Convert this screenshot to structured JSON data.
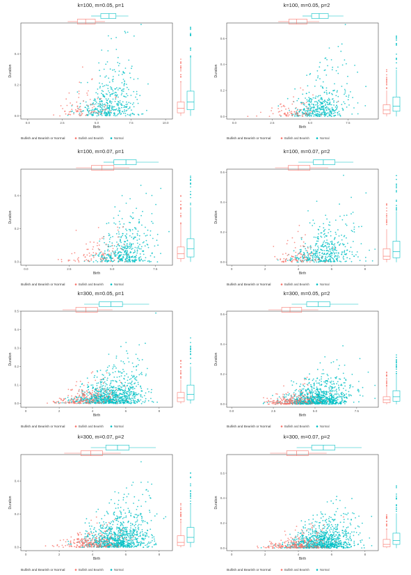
{
  "colors": {
    "bullish": "#F8766D",
    "normal": "#00BFC4",
    "frame": "#444444"
  },
  "legend": {
    "title": "Bullish and Bearish or Normal",
    "entries": [
      "Bullish and Bearish",
      "Normal"
    ],
    "placement": "bottom"
  },
  "chart_data": [
    {
      "type": "scatter",
      "title": "k=100, m=0.05, p=1",
      "xlabel": "Birth",
      "ylabel": "Duration",
      "xlim": [
        -0.5,
        10.5
      ],
      "ylim": [
        -0.02,
        0.6
      ],
      "xticks": [
        "0.0",
        "2.5",
        "5.0",
        "7.5",
        "10.0"
      ],
      "yticks": [
        "0.0",
        "0.2",
        "0.4"
      ],
      "ytick_values": [
        0,
        0.2,
        0.4
      ],
      "xtick_values": [
        0,
        2.5,
        5,
        7.5,
        10
      ],
      "series": [
        {
          "name": "Bullish and Bearish",
          "n": 80,
          "x_mean": 3.9,
          "x_sd": 0.9,
          "y_scale": 0.07
        },
        {
          "name": "Normal",
          "n": 420,
          "x_mean": 5.9,
          "x_sd": 1.0,
          "y_scale": 0.11
        }
      ],
      "marginal_x": {
        "bullish": [
          2.9,
          3.6,
          4.2,
          4.9,
          5.6
        ],
        "normal": [
          4.6,
          5.3,
          5.9,
          6.4,
          7.3
        ]
      },
      "marginal_y": {
        "bullish": [
          0.0,
          0.02,
          0.05,
          0.09,
          0.22
        ],
        "normal": [
          0.0,
          0.04,
          0.09,
          0.16,
          0.38
        ]
      }
    },
    {
      "type": "scatter",
      "title": "k=100, m=0.05, p=2",
      "xlabel": "Birth",
      "ylabel": "Duration",
      "xlim": [
        -0.5,
        9.5
      ],
      "ylim": [
        -0.02,
        0.72
      ],
      "xticks": [
        "0.0",
        "2.5",
        "5.0",
        "7.5"
      ],
      "yticks": [
        "0.0",
        "0.2",
        "0.4",
        "0.6"
      ],
      "ytick_values": [
        0,
        0.2,
        0.4,
        0.6
      ],
      "xtick_values": [
        0,
        2.5,
        5,
        7.5
      ],
      "series": [
        {
          "name": "Bullish and Bearish",
          "n": 80,
          "x_mean": 3.9,
          "x_sd": 0.9,
          "y_scale": 0.06
        },
        {
          "name": "Normal",
          "n": 420,
          "x_mean": 5.7,
          "x_sd": 0.9,
          "y_scale": 0.11
        }
      ],
      "marginal_x": {
        "bullish": [
          2.9,
          3.6,
          4.1,
          4.8,
          5.6
        ],
        "normal": [
          4.5,
          5.1,
          5.6,
          6.2,
          7.2
        ]
      },
      "marginal_y": {
        "bullish": [
          0.0,
          0.02,
          0.05,
          0.09,
          0.2
        ],
        "normal": [
          0.0,
          0.04,
          0.08,
          0.15,
          0.36
        ]
      }
    },
    {
      "type": "scatter",
      "title": "k=100, m=0.07, p=1",
      "xlabel": "Birth",
      "ylabel": "Duration",
      "xlim": [
        -0.3,
        8.5
      ],
      "ylim": [
        -0.02,
        0.56
      ],
      "xticks": [
        "0.0",
        "2.5",
        "5.0",
        "7.5"
      ],
      "yticks": [
        "0.0",
        "0.2",
        "0.4"
      ],
      "ytick_values": [
        0,
        0.2,
        0.4
      ],
      "xtick_values": [
        0,
        2.5,
        5,
        7.5
      ],
      "series": [
        {
          "name": "Bullish and Bearish",
          "n": 90,
          "x_mean": 4.2,
          "x_sd": 0.9,
          "y_scale": 0.07
        },
        {
          "name": "Normal",
          "n": 420,
          "x_mean": 5.8,
          "x_sd": 0.9,
          "y_scale": 0.1
        }
      ],
      "marginal_x": {
        "bullish": [
          2.9,
          3.8,
          4.4,
          5.1,
          6.0
        ],
        "normal": [
          4.5,
          5.1,
          5.8,
          6.4,
          7.7
        ]
      },
      "marginal_y": {
        "bullish": [
          0.0,
          0.02,
          0.05,
          0.09,
          0.23
        ],
        "normal": [
          0.0,
          0.03,
          0.08,
          0.14,
          0.33
        ]
      }
    },
    {
      "type": "scatter",
      "title": "k=100, m=0.07, p=2",
      "xlabel": "Birth",
      "ylabel": "Duration",
      "xlim": [
        -0.3,
        8.8
      ],
      "ylim": [
        -0.02,
        0.62
      ],
      "xticks": [
        "0",
        "2",
        "4",
        "6",
        "8"
      ],
      "yticks": [
        "0.0",
        "0.2",
        "0.4",
        "0.6"
      ],
      "ytick_values": [
        0,
        0.2,
        0.4,
        0.6
      ],
      "xtick_values": [
        0,
        2,
        4,
        6,
        8
      ],
      "series": [
        {
          "name": "Bullish and Bearish",
          "n": 90,
          "x_mean": 4.0,
          "x_sd": 0.9,
          "y_scale": 0.06
        },
        {
          "name": "Normal",
          "n": 420,
          "x_mean": 5.6,
          "x_sd": 1.0,
          "y_scale": 0.1
        }
      ],
      "marginal_x": {
        "bullish": [
          2.6,
          3.4,
          4.0,
          4.7,
          5.8
        ],
        "normal": [
          4.0,
          4.9,
          5.5,
          6.2,
          7.3
        ]
      },
      "marginal_y": {
        "bullish": [
          0.0,
          0.02,
          0.04,
          0.09,
          0.22
        ],
        "normal": [
          0.0,
          0.03,
          0.07,
          0.14,
          0.34
        ]
      }
    },
    {
      "type": "scatter",
      "title": "k=300, m=0.05, p=1",
      "xlabel": "Birth",
      "ylabel": "Duration",
      "xlim": [
        -0.3,
        8.8
      ],
      "ylim": [
        -0.02,
        0.5
      ],
      "xticks": [
        "0",
        "2",
        "4",
        "6",
        "8"
      ],
      "yticks": [
        "0.0",
        "0.1",
        "0.2",
        "0.3",
        "0.4",
        "0.5"
      ],
      "ytick_values": [
        0,
        0.1,
        0.2,
        0.3,
        0.4,
        0.5
      ],
      "xtick_values": [
        0,
        2,
        4,
        6,
        8
      ],
      "series": [
        {
          "name": "Bullish and Bearish",
          "n": 200,
          "x_mean": 3.6,
          "x_sd": 0.9,
          "y_scale": 0.04
        },
        {
          "name": "Normal",
          "n": 900,
          "x_mean": 5.1,
          "x_sd": 1.0,
          "y_scale": 0.06
        }
      ],
      "marginal_x": {
        "bullish": [
          2.2,
          3.0,
          3.6,
          4.3,
          5.2
        ],
        "normal": [
          3.5,
          4.4,
          5.1,
          5.8,
          7.4
        ]
      },
      "marginal_y": {
        "bullish": [
          0.0,
          0.01,
          0.03,
          0.06,
          0.13
        ],
        "normal": [
          0.0,
          0.02,
          0.05,
          0.1,
          0.2
        ]
      }
    },
    {
      "type": "scatter",
      "title": "k=300, m=0.05, p=2",
      "xlabel": "Birth",
      "ylabel": "Duration",
      "xlim": [
        -0.3,
        8.8
      ],
      "ylim": [
        -0.02,
        0.62
      ],
      "xticks": [
        "0.0",
        "2.5",
        "5.0",
        "7.5"
      ],
      "yticks": [
        "0.0",
        "0.2",
        "0.4",
        "0.6"
      ],
      "ytick_values": [
        0,
        0.2,
        0.4,
        0.6
      ],
      "xtick_values": [
        0,
        2.5,
        5,
        7.5
      ],
      "series": [
        {
          "name": "Bullish and Bearish",
          "n": 200,
          "x_mean": 3.6,
          "x_sd": 0.8,
          "y_scale": 0.03
        },
        {
          "name": "Normal",
          "n": 900,
          "x_mean": 5.2,
          "x_sd": 1.0,
          "y_scale": 0.06
        }
      ],
      "marginal_x": {
        "bullish": [
          2.2,
          3.0,
          3.5,
          4.2,
          5.2
        ],
        "normal": [
          3.6,
          4.5,
          5.2,
          5.9,
          7.6
        ]
      },
      "marginal_y": {
        "bullish": [
          0.0,
          0.01,
          0.03,
          0.05,
          0.12
        ],
        "normal": [
          0.0,
          0.02,
          0.05,
          0.09,
          0.2
        ]
      }
    },
    {
      "type": "scatter",
      "title": "k=300, m=0.07, p=2",
      "xlabel": "Birth",
      "ylabel": "Duration",
      "xlim": [
        -0.3,
        8.8
      ],
      "ylim": [
        -0.02,
        0.56
      ],
      "xticks": [
        "0",
        "2",
        "4",
        "6",
        "8"
      ],
      "yticks": [
        "0.0",
        "0.2",
        "0.4"
      ],
      "ytick_values": [
        0,
        0.2,
        0.4
      ],
      "xtick_values": [
        0,
        2,
        4,
        6,
        8
      ],
      "series": [
        {
          "name": "Bullish and Bearish",
          "n": 220,
          "x_mean": 3.9,
          "x_sd": 0.9,
          "y_scale": 0.04
        },
        {
          "name": "Normal",
          "n": 900,
          "x_mean": 5.5,
          "x_sd": 1.0,
          "y_scale": 0.08
        }
      ],
      "marginal_x": {
        "bullish": [
          2.3,
          3.3,
          3.9,
          4.6,
          5.7
        ],
        "normal": [
          3.9,
          4.8,
          5.5,
          6.2,
          7.8
        ]
      },
      "marginal_y": {
        "bullish": [
          0.0,
          0.01,
          0.03,
          0.07,
          0.15
        ],
        "normal": [
          0.0,
          0.03,
          0.06,
          0.12,
          0.26
        ]
      }
    },
    {
      "type": "scatter",
      "title": "k=300, m=0.07, p=2",
      "xlabel": "Birth",
      "ylabel": "Duration",
      "xlim": [
        -0.3,
        8.8
      ],
      "ylim": [
        -0.02,
        0.75
      ],
      "xticks": [
        "0",
        "2",
        "4",
        "6",
        "8"
      ],
      "yticks": [
        "0.0",
        "0.2",
        "0.4",
        "0.6"
      ],
      "ytick_values": [
        0,
        0.2,
        0.4,
        0.6
      ],
      "xtick_values": [
        0,
        2,
        4,
        6,
        8
      ],
      "series": [
        {
          "name": "Bullish and Bearish",
          "n": 220,
          "x_mean": 3.9,
          "x_sd": 0.9,
          "y_scale": 0.04
        },
        {
          "name": "Normal",
          "n": 900,
          "x_mean": 5.5,
          "x_sd": 1.0,
          "y_scale": 0.08
        }
      ],
      "marginal_x": {
        "bullish": [
          2.3,
          3.3,
          3.9,
          4.6,
          5.7
        ],
        "normal": [
          3.9,
          4.8,
          5.5,
          6.2,
          7.8
        ]
      },
      "marginal_y": {
        "bullish": [
          0.0,
          0.01,
          0.03,
          0.07,
          0.15
        ],
        "normal": [
          0.0,
          0.03,
          0.06,
          0.12,
          0.28
        ]
      }
    }
  ]
}
